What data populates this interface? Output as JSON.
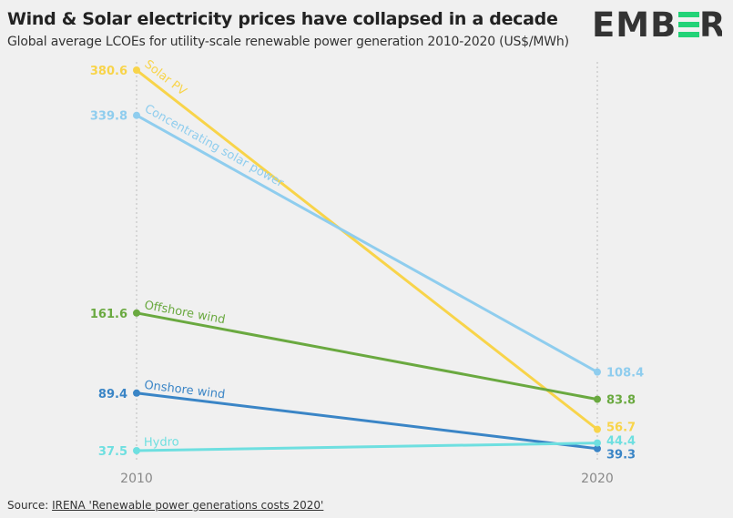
{
  "title": "Wind & Solar electricity prices have collapsed in a decade",
  "subtitle": "Global average LCOEs for utility-scale renewable power generation 2010-2020 (US$/MWh)",
  "logo": "EMBER",
  "source_label": "Source: ",
  "source_link": "IRENA 'Renewable power generations costs 2020'",
  "chart_data": {
    "type": "line",
    "subtype": "slope",
    "x": [
      "2010",
      "2020"
    ],
    "ylim": [
      0,
      380.6
    ],
    "grid": false,
    "series": [
      {
        "name": "Solar PV",
        "values": [
          380.6,
          56.7
        ],
        "color": "#f8d44a"
      },
      {
        "name": "Concentrating solar power",
        "values": [
          339.8,
          108.4
        ],
        "color": "#8fcdee"
      },
      {
        "name": "Offshore wind",
        "values": [
          161.6,
          83.8
        ],
        "color": "#6aa940"
      },
      {
        "name": "Onshore wind",
        "values": [
          89.4,
          39.3
        ],
        "color": "#3a85c6"
      },
      {
        "name": "Hydro",
        "values": [
          37.5,
          44.4
        ],
        "color": "#6edfe0"
      }
    ]
  }
}
